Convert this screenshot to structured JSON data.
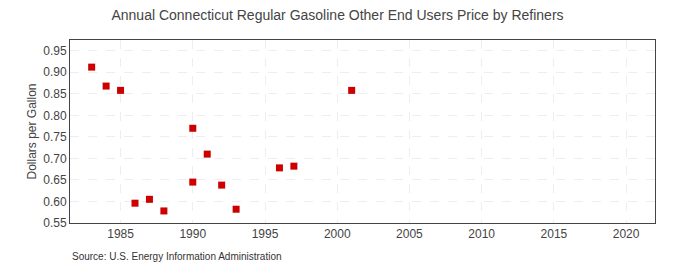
{
  "chart_data": {
    "type": "scatter",
    "title": "Annual Connecticut Regular Gasoline Other End Users Price by Refiners",
    "ylabel": "Dollars per Gallon",
    "annotations": [
      "Source: U.S. Energy Information Administration"
    ],
    "x": [
      1983,
      1984,
      1985,
      1986,
      1987,
      1988,
      1990,
      1990,
      1991,
      1992,
      1993,
      1996,
      1997,
      2001
    ],
    "values": [
      0.912,
      0.868,
      0.858,
      0.596,
      0.605,
      0.578,
      0.645,
      0.77,
      0.71,
      0.638,
      0.582,
      0.678,
      0.682,
      0.858
    ],
    "color": "#cc0000",
    "marker": "square",
    "xlim": [
      1981.5,
      2022
    ],
    "ylim": [
      0.55,
      0.975
    ],
    "xticks": [
      1985,
      1990,
      1995,
      2000,
      2005,
      2010,
      2015,
      2020
    ],
    "yticks": [
      0.55,
      {
        "value": 0.6,
        "label": "0.60"
      },
      0.65,
      {
        "value": 0.7,
        "label": "0.70"
      },
      0.75,
      {
        "value": 0.8,
        "label": "0.80"
      },
      0.85,
      {
        "value": 0.9,
        "label": "0.90"
      },
      0.95
    ],
    "grid": true
  }
}
